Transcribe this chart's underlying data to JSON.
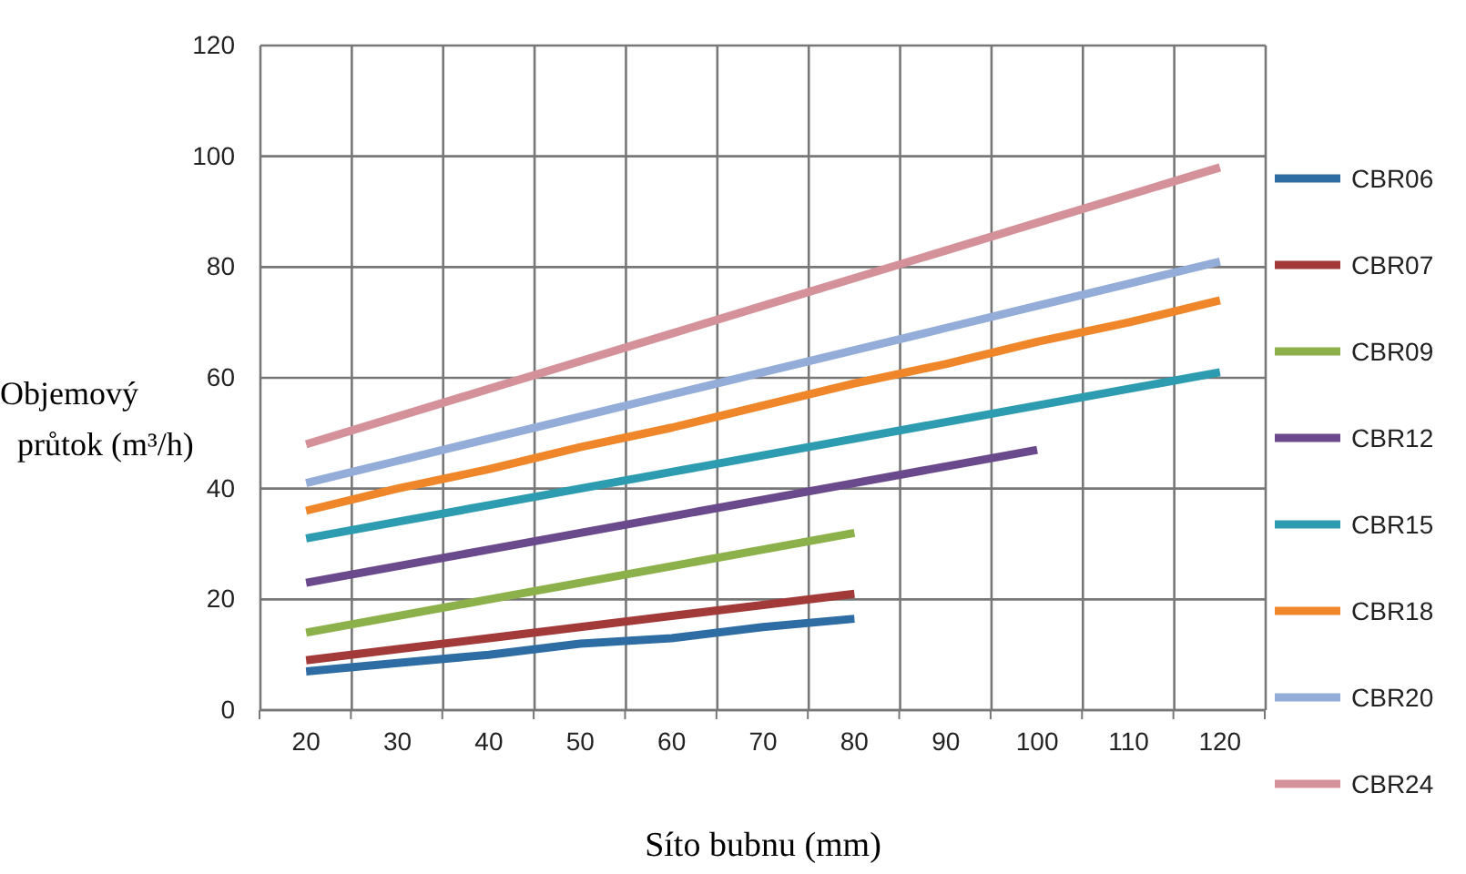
{
  "chart_data": {
    "type": "line",
    "xlabel": "Síto bubnu (mm)",
    "ylabel": "Objemový průtok (m³/h)",
    "categories": [
      "20",
      "30",
      "40",
      "50",
      "60",
      "70",
      "80",
      "90",
      "100",
      "110",
      "120"
    ],
    "ylim": [
      0,
      120
    ],
    "yticks": [
      0,
      20,
      40,
      60,
      80,
      100,
      120
    ],
    "grid": true,
    "legend": "right",
    "marker": "none",
    "line_style": "solid",
    "series": [
      {
        "name": "CBR06",
        "color": "#2e6ca4",
        "values": [
          7,
          8.5,
          10,
          12,
          13,
          15,
          16.5,
          null,
          null,
          null,
          null
        ]
      },
      {
        "name": "CBR07",
        "color": "#a33a3a",
        "values": [
          9,
          11,
          13,
          15,
          17,
          19,
          21,
          null,
          null,
          null,
          null
        ]
      },
      {
        "name": "CBR09",
        "color": "#8cb04a",
        "values": [
          14,
          17,
          20,
          23,
          26,
          29,
          32,
          null,
          null,
          null,
          null
        ]
      },
      {
        "name": "CBR12",
        "color": "#6a4a8c",
        "values": [
          23,
          26,
          29,
          32,
          35,
          38,
          41,
          44,
          47,
          null,
          null
        ]
      },
      {
        "name": "CBR15",
        "color": "#2e9cb0",
        "values": [
          31,
          34,
          37,
          40,
          43,
          46,
          49,
          52,
          55,
          58,
          61
        ]
      },
      {
        "name": "CBR18",
        "color": "#f0862a",
        "values": [
          36,
          40,
          43.5,
          47.5,
          51,
          55,
          59,
          62.5,
          66.5,
          70,
          74
        ]
      },
      {
        "name": "CBR20",
        "color": "#93acd8",
        "values": [
          41,
          45,
          49,
          53,
          57,
          61,
          65,
          69,
          73,
          77,
          81
        ]
      },
      {
        "name": "CBR24",
        "color": "#d4919a",
        "values": [
          48,
          53,
          58,
          63,
          68,
          73,
          78,
          83,
          88,
          93,
          98
        ]
      }
    ]
  }
}
